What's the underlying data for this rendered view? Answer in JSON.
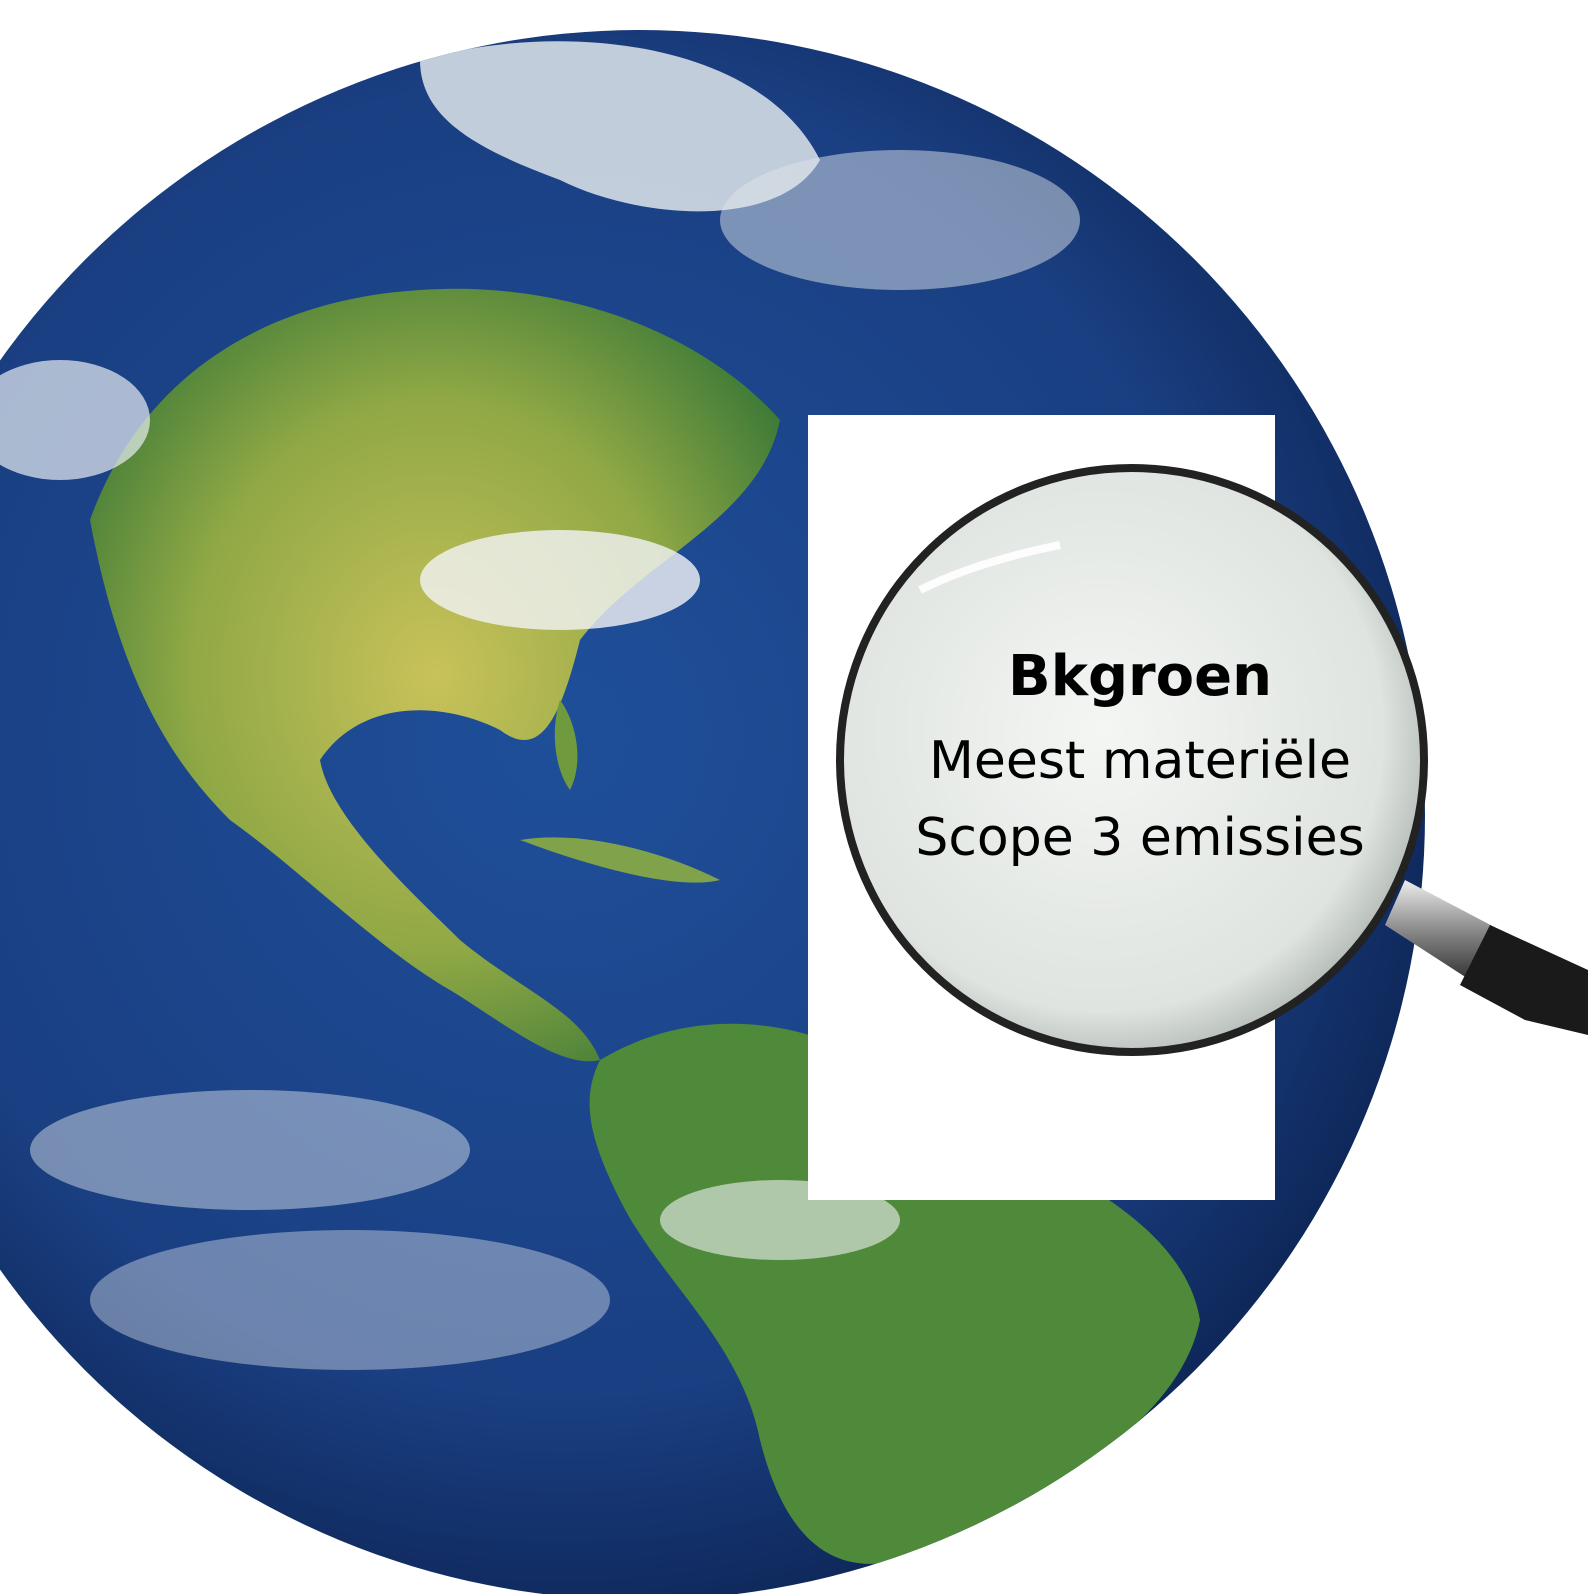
{
  "lens": {
    "title": "Bkgroen",
    "lines": [
      "Meest materiële",
      "Scope 3 emissies"
    ]
  }
}
